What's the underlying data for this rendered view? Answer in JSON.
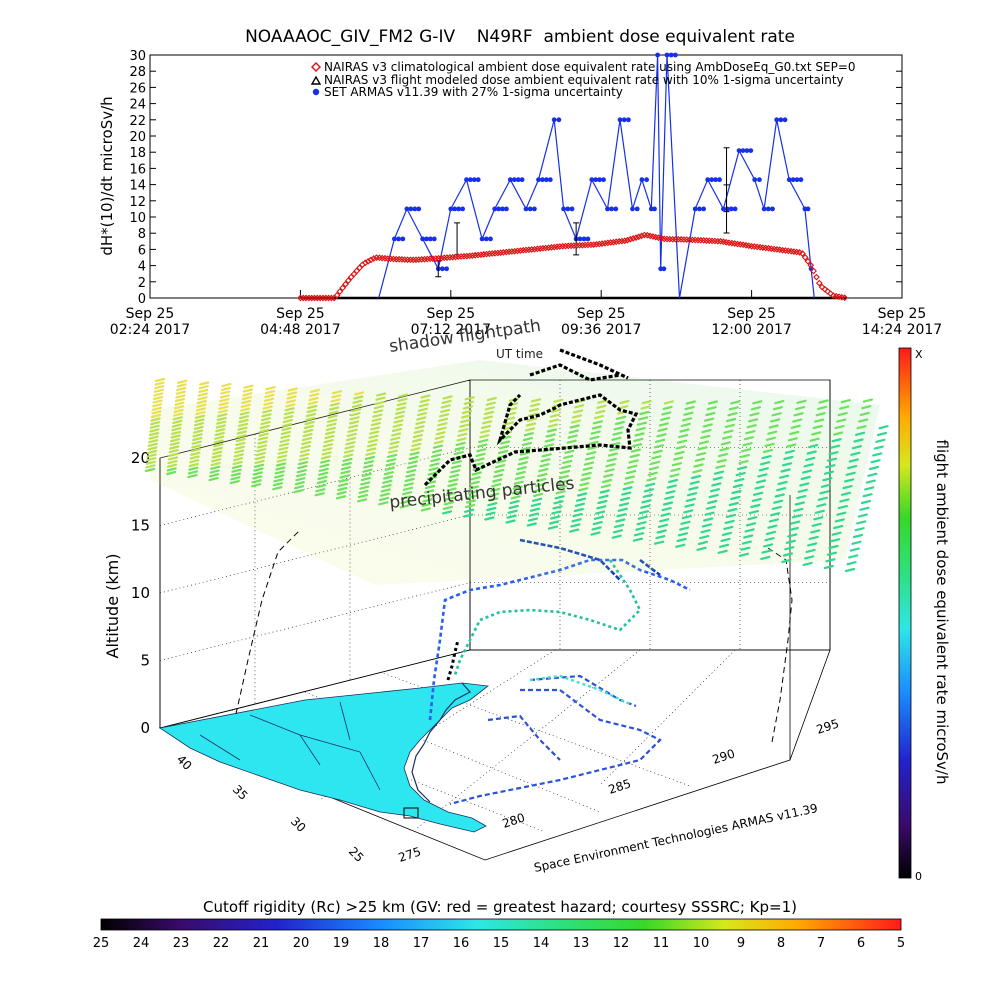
{
  "chart_data": [
    {
      "type": "line",
      "title": "NOAAAOC_GIV_FM2 G-IV    N49RF  ambient dose equivalent rate",
      "ylabel": "dH*(10)/dt microSv/h",
      "ylim": [
        0,
        30
      ],
      "y_ticks": [
        "0",
        "2",
        "4",
        "6",
        "8",
        "10",
        "12",
        "14",
        "16",
        "18",
        "20",
        "22",
        "24",
        "26",
        "28",
        "30"
      ],
      "x_ticks": [
        {
          "line1": "Sep 25",
          "line2": "02:24 2017",
          "hour": 2.4
        },
        {
          "line1": "Sep 25",
          "line2": "04:48 2017",
          "hour": 4.8
        },
        {
          "line1": "Sep 25",
          "line2": "07:12 2017",
          "hour": 7.2
        },
        {
          "line1": "Sep 25",
          "line2": "09:36 2017",
          "hour": 9.6
        },
        {
          "line1": "Sep 25",
          "line2": "12:00 2017",
          "hour": 12.0
        },
        {
          "line1": "Sep 25",
          "line2": "14:24 2017",
          "hour": 14.4
        }
      ],
      "xlim_hours": [
        2.4,
        14.4
      ],
      "legend": [
        "NAIRAS v3 climatological ambient dose equivalent rate using AmbDoseEq_G0.txt SEP=0",
        "NAIRAS v3 flight modeled dose ambient equivalent rate with 10% 1-sigma uncertainty",
        "SET ARMAS v11.39 with 27% 1-sigma uncertainty"
      ],
      "legend_placement": "top-right",
      "colors": {
        "nairas_climo": "#dd1111",
        "nairas_flight": "#000000",
        "armas": "#1530e8"
      },
      "series": [
        {
          "name": "NAIRAS v3 climatological ambient dose equivalent rate using AmbDoseEq_G0.txt SEP=0",
          "x_hours": [
            4.8,
            5.35,
            5.6,
            5.8,
            6.0,
            6.3,
            6.6,
            7.0,
            7.5,
            8.0,
            8.5,
            9.0,
            9.5,
            10.0,
            10.3,
            10.6,
            11.0,
            11.5,
            12.0,
            12.4,
            12.8,
            12.95,
            13.1,
            13.3,
            13.5
          ],
          "values": [
            0,
            0,
            2.5,
            4.2,
            5.0,
            4.8,
            4.7,
            4.9,
            5.2,
            5.6,
            6.0,
            6.4,
            6.6,
            7.1,
            7.8,
            7.3,
            7.2,
            7.0,
            6.4,
            6.0,
            5.6,
            4.0,
            1.5,
            0.3,
            0
          ]
        },
        {
          "name": "NAIRAS v3 flight modeled dose ambient equivalent rate with 10% 1-sigma uncertainty",
          "x_hours": [
            4.8,
            13.5
          ],
          "values": [
            0,
            0
          ]
        },
        {
          "name": "SET ARMAS v11.39 with 27% 1-sigma uncertainty",
          "x_hours": [
            6.05,
            6.3,
            6.5,
            6.75,
            7.0,
            7.2,
            7.45,
            7.7,
            7.9,
            8.15,
            8.4,
            8.6,
            8.85,
            9.0,
            9.2,
            9.45,
            9.7,
            9.9,
            10.1,
            10.25,
            10.4,
            10.5,
            10.55,
            10.65,
            10.85,
            11.1,
            11.3,
            11.55,
            11.8,
            12.05,
            12.2,
            12.4,
            12.6,
            12.85,
            12.95,
            13.0
          ],
          "values": [
            0,
            7.3,
            11,
            7.3,
            3.6,
            11,
            14.6,
            7.3,
            11,
            14.6,
            11,
            14.6,
            22,
            11,
            7.3,
            14.6,
            11,
            22,
            11,
            14.6,
            11,
            30,
            3.6,
            30,
            0,
            11,
            14.6,
            11,
            18.2,
            14.6,
            11,
            22,
            14.6,
            11,
            3.6,
            0
          ]
        }
      ]
    },
    {
      "type": "scatter",
      "zlabel": "Altitude (km)",
      "z_ticks": [
        "0",
        "5",
        "10",
        "15",
        "20"
      ],
      "x_ticks": [
        "275",
        "280",
        "285",
        "290",
        "295"
      ],
      "y_ticks": [
        "40",
        "35",
        "30",
        "25"
      ],
      "annotations": [
        "shadow flightpath",
        "UT time",
        "precipitating particles"
      ],
      "credit": "Space Environment Technologies ARMAS v11.39",
      "colorbar_label": "flight ambient dose equivalent rate microSv/h",
      "colorbar_ticks": [
        "X",
        "0"
      ]
    }
  ],
  "rigidity_bar": {
    "title": "Cutoff rigidity (Rc) >25 km (GV: red = greatest hazard; courtesy SSSRC; Kp=1)",
    "ticks": [
      "25",
      "24",
      "23",
      "22",
      "21",
      "20",
      "19",
      "18",
      "17",
      "16",
      "15",
      "14",
      "13",
      "12",
      "11",
      "10",
      "9",
      "8",
      "7",
      "6",
      "5"
    ]
  }
}
